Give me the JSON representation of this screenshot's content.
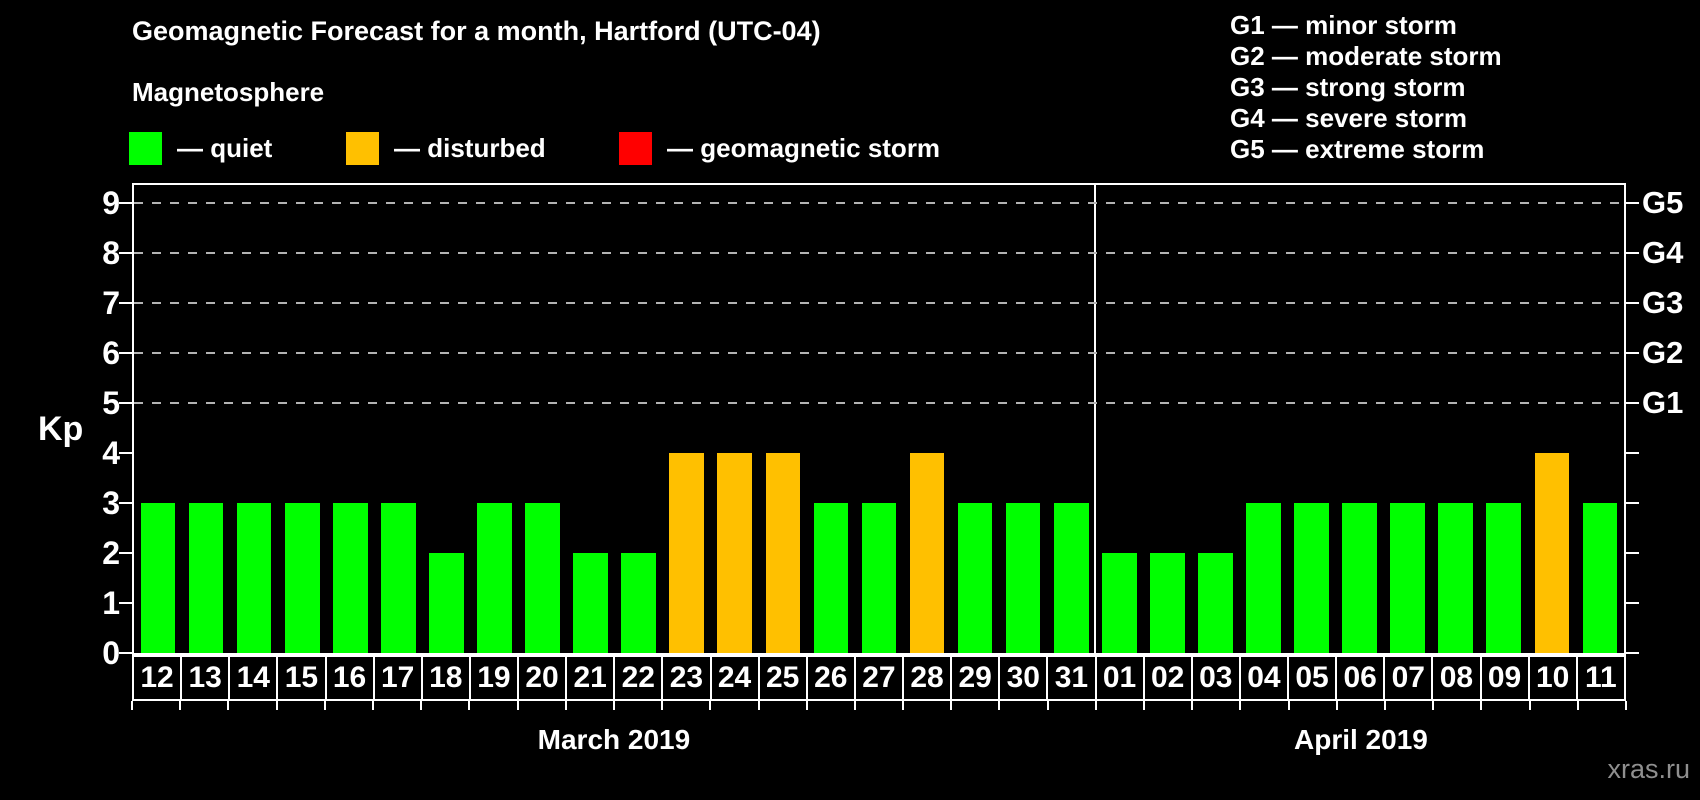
{
  "header": {
    "title": "Geomagnetic Forecast for a month, Hartford (UTC-04)",
    "subtitle": "Magnetosphere"
  },
  "legend": {
    "items": [
      {
        "name": "quiet",
        "label": "— quiet",
        "color": "#00FF00"
      },
      {
        "name": "disturbed",
        "label": "— disturbed",
        "color": "#FFC000"
      },
      {
        "name": "storm",
        "label": "— geomagnetic storm",
        "color": "#FF0000"
      }
    ]
  },
  "g_legend": {
    "lines": [
      "G1 — minor storm",
      "G2 — moderate storm",
      "G3 — strong storm",
      "G4 — severe storm",
      "G5 — extreme storm"
    ]
  },
  "watermark": "xras.ru",
  "chart_data": {
    "type": "bar",
    "title": "Geomagnetic Forecast for a month, Hartford (UTC-04)",
    "ylabel": "Kp",
    "ylim": [
      0,
      9.4
    ],
    "y_ticks": [
      0,
      1,
      2,
      3,
      4,
      5,
      6,
      7,
      8,
      9
    ],
    "dashed_gridlines_at": [
      5,
      6,
      7,
      8,
      9
    ],
    "right_axis_labels": [
      {
        "label": "G1",
        "value": 5
      },
      {
        "label": "G2",
        "value": 6
      },
      {
        "label": "G3",
        "value": 7
      },
      {
        "label": "G4",
        "value": 8
      },
      {
        "label": "G5",
        "value": 9
      }
    ],
    "status_colors": {
      "quiet": "#00FF00",
      "disturbed": "#FFC000",
      "storm": "#FF0000"
    },
    "months": [
      {
        "label": "March 2019",
        "days": [
          {
            "date": "12",
            "kp": 3,
            "status": "quiet"
          },
          {
            "date": "13",
            "kp": 3,
            "status": "quiet"
          },
          {
            "date": "14",
            "kp": 3,
            "status": "quiet"
          },
          {
            "date": "15",
            "kp": 3,
            "status": "quiet"
          },
          {
            "date": "16",
            "kp": 3,
            "status": "quiet"
          },
          {
            "date": "17",
            "kp": 3,
            "status": "quiet"
          },
          {
            "date": "18",
            "kp": 2,
            "status": "quiet"
          },
          {
            "date": "19",
            "kp": 3,
            "status": "quiet"
          },
          {
            "date": "20",
            "kp": 3,
            "status": "quiet"
          },
          {
            "date": "21",
            "kp": 2,
            "status": "quiet"
          },
          {
            "date": "22",
            "kp": 2,
            "status": "quiet"
          },
          {
            "date": "23",
            "kp": 4,
            "status": "disturbed"
          },
          {
            "date": "24",
            "kp": 4,
            "status": "disturbed"
          },
          {
            "date": "25",
            "kp": 4,
            "status": "disturbed"
          },
          {
            "date": "26",
            "kp": 3,
            "status": "quiet"
          },
          {
            "date": "27",
            "kp": 3,
            "status": "quiet"
          },
          {
            "date": "28",
            "kp": 4,
            "status": "disturbed"
          },
          {
            "date": "29",
            "kp": 3,
            "status": "quiet"
          },
          {
            "date": "30",
            "kp": 3,
            "status": "quiet"
          },
          {
            "date": "31",
            "kp": 3,
            "status": "quiet"
          }
        ]
      },
      {
        "label": "April 2019",
        "days": [
          {
            "date": "01",
            "kp": 2,
            "status": "quiet"
          },
          {
            "date": "02",
            "kp": 2,
            "status": "quiet"
          },
          {
            "date": "03",
            "kp": 2,
            "status": "quiet"
          },
          {
            "date": "04",
            "kp": 3,
            "status": "quiet"
          },
          {
            "date": "05",
            "kp": 3,
            "status": "quiet"
          },
          {
            "date": "06",
            "kp": 3,
            "status": "quiet"
          },
          {
            "date": "07",
            "kp": 3,
            "status": "quiet"
          },
          {
            "date": "08",
            "kp": 3,
            "status": "quiet"
          },
          {
            "date": "09",
            "kp": 3,
            "status": "quiet"
          },
          {
            "date": "10",
            "kp": 4,
            "status": "disturbed"
          },
          {
            "date": "11",
            "kp": 3,
            "status": "quiet"
          }
        ]
      }
    ]
  }
}
